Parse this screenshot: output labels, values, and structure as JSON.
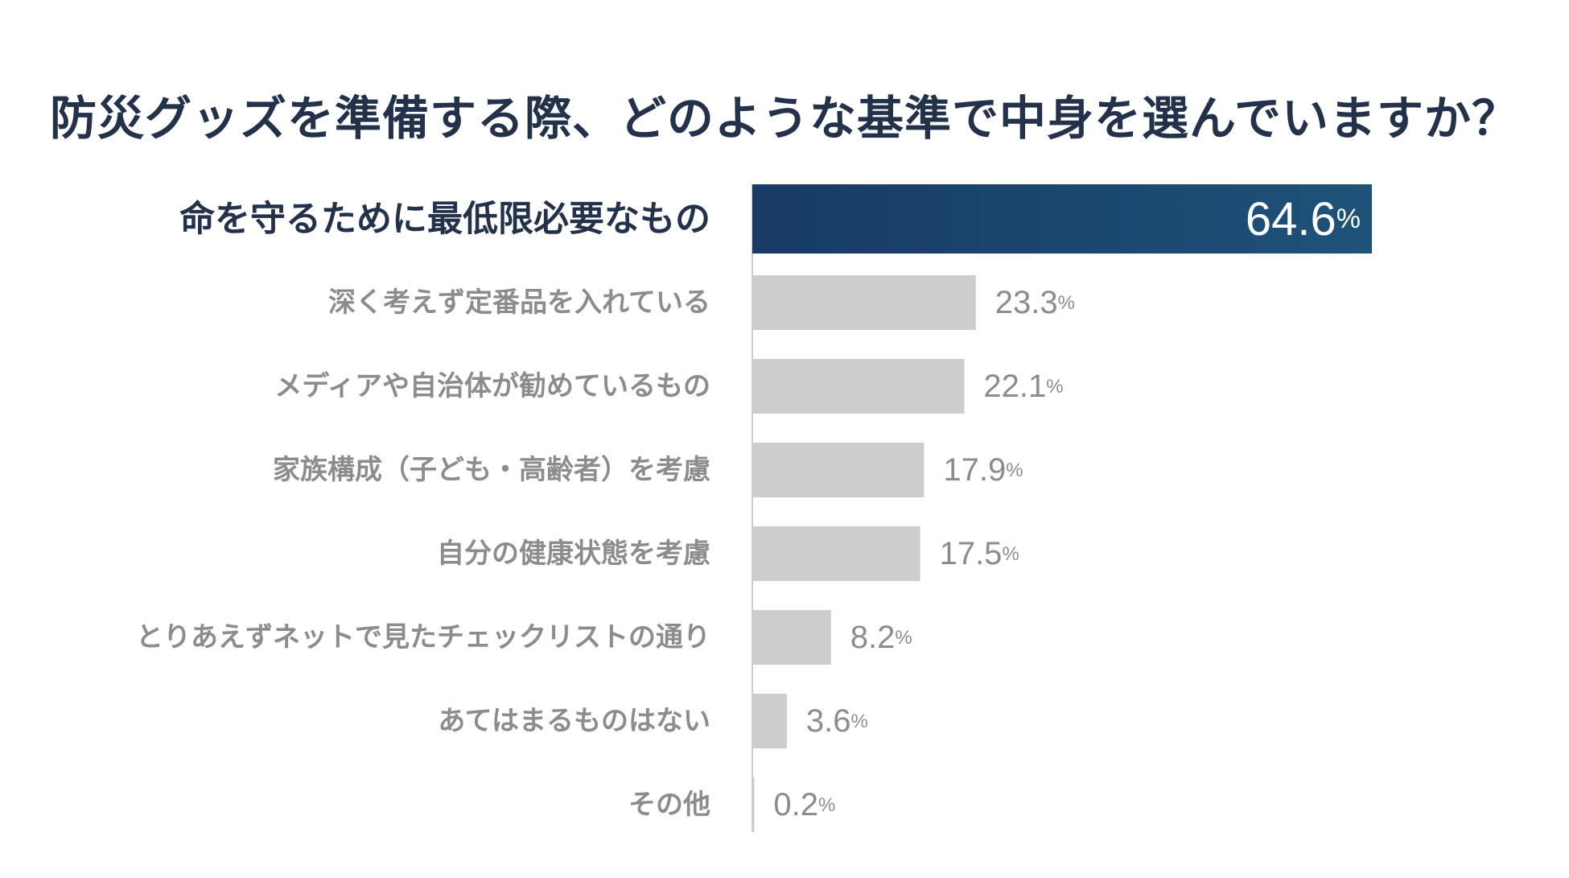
{
  "chart_data": {
    "type": "bar",
    "orientation": "horizontal",
    "title": "防災グッズを準備する際、どのような基準で中身を選んでいますか？",
    "categories": [
      "命を守るために最低限必要なもの",
      "深く考えず定番品を入れている",
      "メディアや自治体が勧めているもの",
      "家族構成（子ども・高齢者）を考慮",
      "自分の健康状態を考慮",
      "とりあえずネットで見たチェックリストの通り",
      "あてはまるものはない",
      "その他"
    ],
    "values": [
      64.6,
      23.3,
      22.1,
      17.9,
      17.5,
      8.2,
      3.6,
      0.2
    ],
    "value_labels": [
      "64.6",
      "23.3",
      "22.1",
      "17.9",
      "17.5",
      "8.2",
      "3.6",
      "0.2"
    ],
    "unit": "%",
    "highlight_index": 0,
    "xlabel": "",
    "ylabel": "",
    "grid": false,
    "colors": {
      "highlight_start": "#173a66",
      "highlight_end": "#1e5279",
      "bar": "#cccccc",
      "title": "#23314a",
      "highlight_label": "#23314a",
      "label": "#8c8c8c",
      "highlight_value": "#ffffff",
      "axis": "#bbbbbb"
    }
  }
}
